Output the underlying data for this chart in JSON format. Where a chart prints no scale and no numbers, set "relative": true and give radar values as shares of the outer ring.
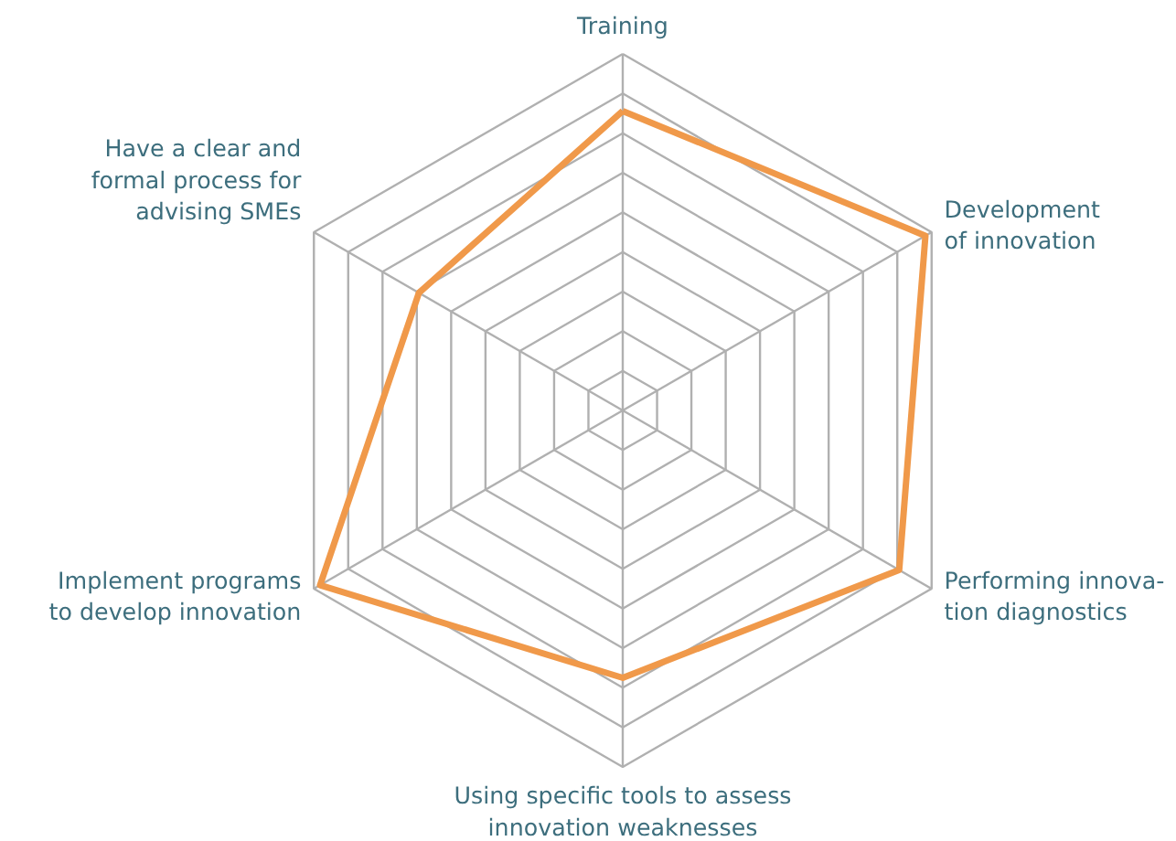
{
  "chart_data": {
    "type": "radar",
    "relative": true,
    "grid": true,
    "line_style": "solid",
    "categories": [
      "Training",
      "Development\nof innovation",
      "Performing innova-\ntion diagnostics",
      "Using specific tools to assess\ninnovation weaknesses",
      "Implement programs\nto develop innovation",
      "Have a clear and\nformal process for\nadvising SMEs"
    ],
    "series": [
      {
        "color": "#f0994a",
        "values": [
          0.84,
          0.98,
          0.895,
          0.75,
          0.98,
          0.66
        ]
      }
    ]
  }
}
